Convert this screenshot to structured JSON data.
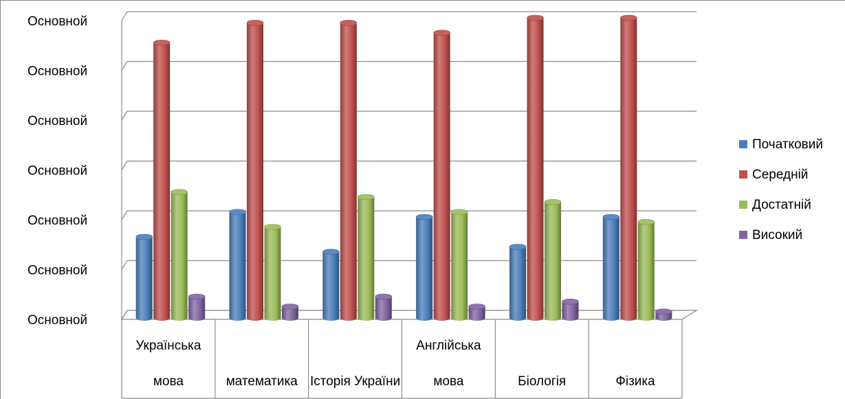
{
  "chart_data": {
    "type": "bar",
    "categories": [
      [
        "Українська",
        "мова"
      ],
      [
        "",
        "математика"
      ],
      [
        "",
        "Історія України"
      ],
      [
        "Англійська",
        "мова"
      ],
      [
        "",
        "Біологія"
      ],
      [
        "",
        "Фізика"
      ]
    ],
    "series": [
      {
        "name": "Початковий",
        "color": "#4a7ebb",
        "values": [
          16,
          21,
          13,
          20,
          14,
          20
        ]
      },
      {
        "name": "Середній",
        "color": "#c0504d",
        "values": [
          55,
          59,
          59,
          57,
          60,
          60
        ]
      },
      {
        "name": "Достатній",
        "color": "#9bbb59",
        "values": [
          25,
          18,
          24,
          21,
          23,
          19
        ]
      },
      {
        "name": "Високий",
        "color": "#8064a2",
        "values": [
          4,
          2,
          4,
          2,
          3,
          1
        ]
      }
    ],
    "y_tick_labels": [
      "Основной",
      "Основной",
      "Основной",
      "Основной",
      "Основной",
      "Основной",
      "Основной"
    ],
    "ylim": [
      0,
      60
    ],
    "grid": true,
    "legend": "right"
  }
}
